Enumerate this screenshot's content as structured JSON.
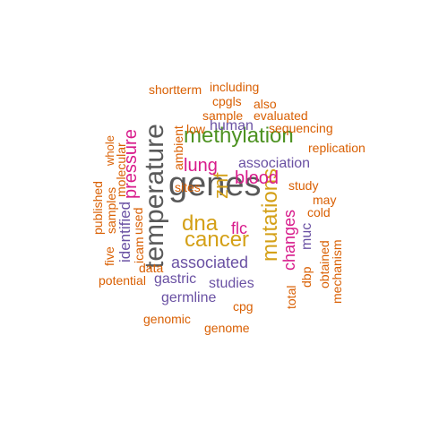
{
  "palette": {
    "orange": "#D95F02",
    "gray": "#595959",
    "green": "#4D9221",
    "purple": "#6A51A3",
    "pink": "#D81B8B",
    "gold": "#D4A017"
  },
  "words": [
    {
      "text": "genes",
      "color": "gray"
    },
    {
      "text": "temperature",
      "color": "gray"
    },
    {
      "text": "methylation",
      "color": "green"
    },
    {
      "text": "mutations",
      "color": "gold"
    },
    {
      "text": "dna",
      "color": "gold"
    },
    {
      "text": "cancer",
      "color": "gold"
    },
    {
      "text": "znf",
      "color": "gold"
    },
    {
      "text": "pressure",
      "color": "pink"
    },
    {
      "text": "lung",
      "color": "pink"
    },
    {
      "text": "blood",
      "color": "pink"
    },
    {
      "text": "flc",
      "color": "pink"
    },
    {
      "text": "changes",
      "color": "pink"
    },
    {
      "text": "associated",
      "color": "purple"
    },
    {
      "text": "association",
      "color": "purple"
    },
    {
      "text": "human",
      "color": "purple"
    },
    {
      "text": "gastric",
      "color": "purple"
    },
    {
      "text": "studies",
      "color": "purple"
    },
    {
      "text": "germline",
      "color": "purple"
    },
    {
      "text": "identified",
      "color": "purple"
    },
    {
      "text": "muc",
      "color": "purple"
    },
    {
      "text": "shortterm",
      "color": "orange"
    },
    {
      "text": "including",
      "color": "orange"
    },
    {
      "text": "cpgls",
      "color": "orange"
    },
    {
      "text": "also",
      "color": "orange"
    },
    {
      "text": "sample",
      "color": "orange"
    },
    {
      "text": "evaluated",
      "color": "orange"
    },
    {
      "text": "low",
      "color": "orange"
    },
    {
      "text": "sequencing",
      "color": "orange"
    },
    {
      "text": "replication",
      "color": "orange"
    },
    {
      "text": "ambient",
      "color": "orange"
    },
    {
      "text": "whole",
      "color": "orange"
    },
    {
      "text": "molecular",
      "color": "orange"
    },
    {
      "text": "samples",
      "color": "orange"
    },
    {
      "text": "published",
      "color": "orange"
    },
    {
      "text": "sites",
      "color": "orange"
    },
    {
      "text": "study",
      "color": "orange"
    },
    {
      "text": "may",
      "color": "orange"
    },
    {
      "text": "cold",
      "color": "orange"
    },
    {
      "text": "used",
      "color": "orange"
    },
    {
      "text": "icam",
      "color": "orange"
    },
    {
      "text": "five",
      "color": "orange"
    },
    {
      "text": "data",
      "color": "orange"
    },
    {
      "text": "potential",
      "color": "orange"
    },
    {
      "text": "total",
      "color": "orange"
    },
    {
      "text": "dbp",
      "color": "orange"
    },
    {
      "text": "obtained",
      "color": "orange"
    },
    {
      "text": "mechanism",
      "color": "orange"
    },
    {
      "text": "cpg",
      "color": "orange"
    },
    {
      "text": "genomic",
      "color": "orange"
    },
    {
      "text": "genome",
      "color": "orange"
    }
  ]
}
